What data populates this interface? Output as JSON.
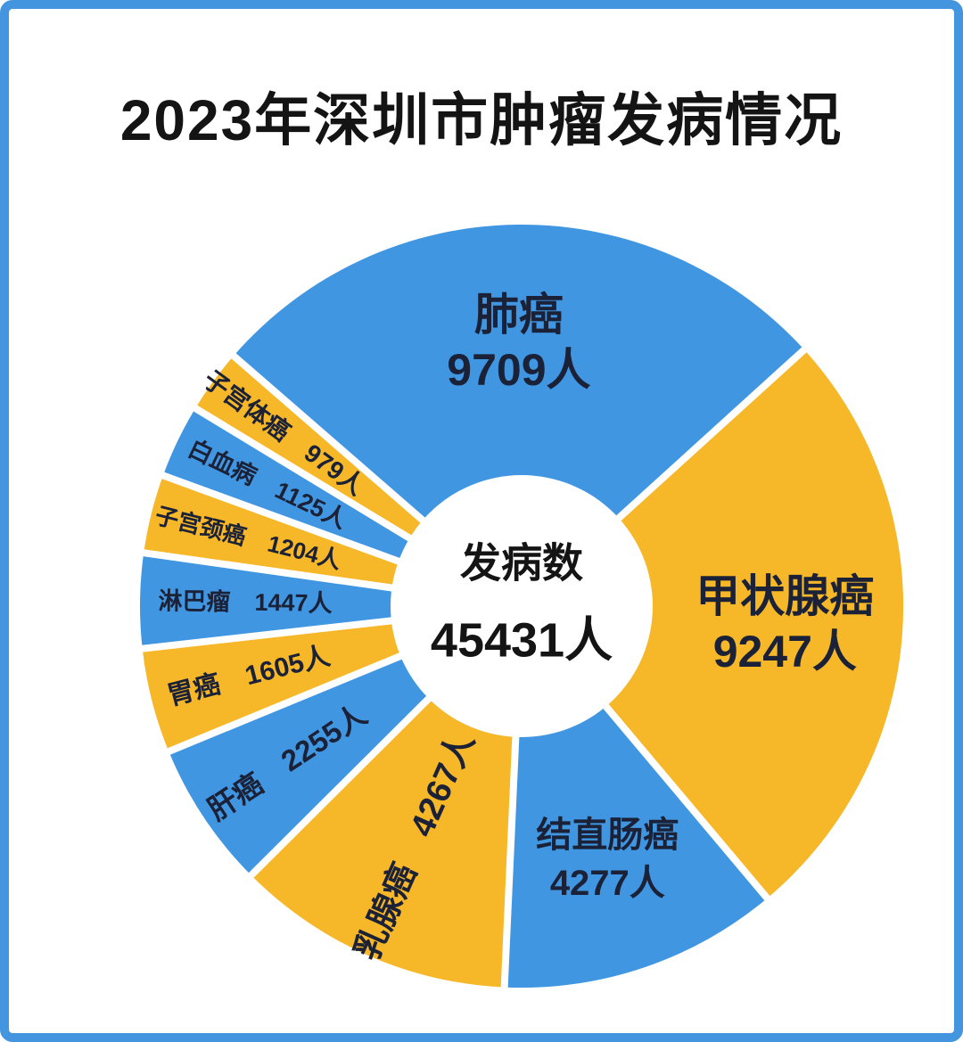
{
  "page": {
    "background_color": "#FFFFFF",
    "border_color": "#4495E0"
  },
  "header": {
    "title": "2023年深圳市肿瘤发病情况"
  },
  "chart_data": {
    "type": "pie",
    "donut": true,
    "title": "2023年深圳市肿瘤发病情况",
    "total_label": "发病数",
    "total_value": 45431,
    "total_value_text": "45431人",
    "unit": "人",
    "start_angle_deg": -49,
    "legend": "none",
    "grid": false,
    "colors": {
      "blue": "#4196E2",
      "yellow": "#F6B728",
      "gap": "#FFFFFF",
      "label_text": "#1B2136",
      "center_text": "#141414"
    },
    "slices": [
      {
        "name": "肺癌",
        "value": 9709,
        "color": "#4196E2",
        "label_style": "horizontal-large"
      },
      {
        "name": "甲状腺癌",
        "value": 9247,
        "color": "#F6B728",
        "label_style": "horizontal-large"
      },
      {
        "name": "结直肠癌",
        "value": 4277,
        "color": "#4196E2",
        "label_style": "horizontal-medium"
      },
      {
        "name": "乳腺癌",
        "value": 4267,
        "color": "#F6B728",
        "label_style": "radial",
        "label_size": 38,
        "label_r": 295
      },
      {
        "name": "肝癌",
        "value": 2255,
        "color": "#4196E2",
        "label_style": "radial",
        "label_size": 33
      },
      {
        "name": "胃癌",
        "value": 1605,
        "color": "#F6B728",
        "label_style": "radial",
        "label_size": 30
      },
      {
        "name": "淋巴瘤",
        "value": 1447,
        "color": "#4196E2",
        "label_style": "radial",
        "label_size": 27,
        "label_r": 310
      },
      {
        "name": "子宫颈癌",
        "value": 1204,
        "color": "#F6B728",
        "label_style": "radial",
        "label_size": 26
      },
      {
        "name": "白血病",
        "value": 1125,
        "color": "#4196E2",
        "label_style": "radial",
        "label_size": 27
      },
      {
        "name": "子宫体癌",
        "value": 979,
        "color": "#F6B728",
        "label_style": "radial",
        "label_size": 28,
        "label_r": 330
      }
    ]
  }
}
